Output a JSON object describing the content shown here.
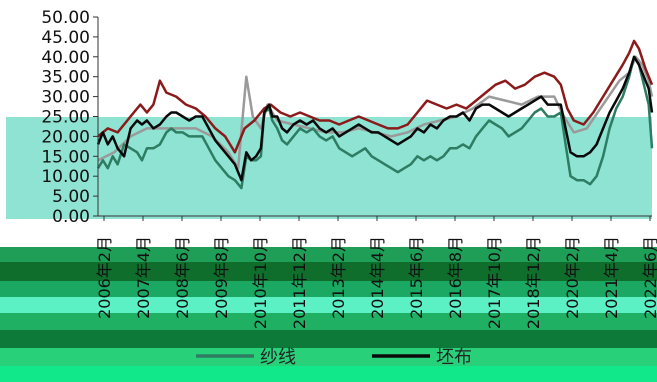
{
  "chart_data": {
    "type": "line",
    "title": "",
    "xlabel": "",
    "ylabel": "",
    "ylim": [
      0,
      50
    ],
    "yticks": [
      "0.00",
      "5.00",
      "10.00",
      "15.00",
      "20.00",
      "25.00",
      "30.00",
      "35.00",
      "40.00",
      "45.00",
      "50.00"
    ],
    "xticks": [
      "2006年2月",
      "2007年4月",
      "2008年6月",
      "2009年8月",
      "2010年10月",
      "2011年12月",
      "2013年2月",
      "2014年4月",
      "2015年6月",
      "2016年8月",
      "2017年10月",
      "2018年12月",
      "2020年2月",
      "2021年4月",
      "2022年6月"
    ],
    "grid": false,
    "legend_position": "bottom",
    "series": [
      {
        "name": "纱线",
        "color": "#2e7d62",
        "values": [
          [
            2006.0,
            12
          ],
          [
            2006.15,
            14
          ],
          [
            2006.3,
            12
          ],
          [
            2006.45,
            15
          ],
          [
            2006.6,
            13
          ],
          [
            2006.8,
            18
          ],
          [
            2007.0,
            17
          ],
          [
            2007.2,
            16
          ],
          [
            2007.35,
            14
          ],
          [
            2007.5,
            17
          ],
          [
            2007.7,
            17
          ],
          [
            2007.9,
            18
          ],
          [
            2008.1,
            21
          ],
          [
            2008.25,
            22
          ],
          [
            2008.4,
            21
          ],
          [
            2008.6,
            21
          ],
          [
            2008.8,
            20
          ],
          [
            2009.0,
            20
          ],
          [
            2009.2,
            20
          ],
          [
            2009.4,
            17
          ],
          [
            2009.6,
            14
          ],
          [
            2009.8,
            12
          ],
          [
            2010.0,
            10
          ],
          [
            2010.2,
            9
          ],
          [
            2010.4,
            7
          ],
          [
            2010.55,
            15
          ],
          [
            2010.7,
            14
          ],
          [
            2010.85,
            14
          ],
          [
            2011.0,
            15
          ],
          [
            2011.1,
            26
          ],
          [
            2011.25,
            27
          ],
          [
            2011.35,
            24
          ],
          [
            2011.5,
            22
          ],
          [
            2011.65,
            19
          ],
          [
            2011.8,
            18
          ],
          [
            2012.0,
            20
          ],
          [
            2012.2,
            22
          ],
          [
            2012.4,
            21
          ],
          [
            2012.6,
            22
          ],
          [
            2012.8,
            20
          ],
          [
            2013.0,
            19
          ],
          [
            2013.2,
            20
          ],
          [
            2013.4,
            17
          ],
          [
            2013.6,
            16
          ],
          [
            2013.8,
            15
          ],
          [
            2014.0,
            16
          ],
          [
            2014.2,
            17
          ],
          [
            2014.4,
            15
          ],
          [
            2014.6,
            14
          ],
          [
            2014.8,
            13
          ],
          [
            2015.0,
            12
          ],
          [
            2015.2,
            11
          ],
          [
            2015.4,
            12
          ],
          [
            2015.6,
            13
          ],
          [
            2015.8,
            15
          ],
          [
            2016.0,
            14
          ],
          [
            2016.2,
            15
          ],
          [
            2016.4,
            14
          ],
          [
            2016.6,
            15
          ],
          [
            2016.8,
            17
          ],
          [
            2017.0,
            17
          ],
          [
            2017.2,
            18
          ],
          [
            2017.4,
            17
          ],
          [
            2017.6,
            20
          ],
          [
            2017.8,
            22
          ],
          [
            2018.0,
            24
          ],
          [
            2018.2,
            23
          ],
          [
            2018.4,
            22
          ],
          [
            2018.6,
            20
          ],
          [
            2018.8,
            21
          ],
          [
            2019.0,
            22
          ],
          [
            2019.2,
            24
          ],
          [
            2019.4,
            26
          ],
          [
            2019.6,
            27
          ],
          [
            2019.8,
            25
          ],
          [
            2020.0,
            25
          ],
          [
            2020.2,
            26
          ],
          [
            2020.35,
            18
          ],
          [
            2020.5,
            10
          ],
          [
            2020.7,
            9
          ],
          [
            2020.9,
            9
          ],
          [
            2021.1,
            8
          ],
          [
            2021.3,
            10
          ],
          [
            2021.5,
            15
          ],
          [
            2021.7,
            22
          ],
          [
            2021.9,
            27
          ],
          [
            2022.1,
            30
          ],
          [
            2022.3,
            35
          ],
          [
            2022.45,
            40
          ],
          [
            2022.6,
            38
          ],
          [
            2022.75,
            33
          ],
          [
            2022.9,
            28
          ],
          [
            2023.0,
            17
          ]
        ]
      },
      {
        "name": "坯布",
        "color": "#0a0a0a",
        "values": [
          [
            2006.0,
            18
          ],
          [
            2006.15,
            21
          ],
          [
            2006.3,
            18
          ],
          [
            2006.45,
            20
          ],
          [
            2006.6,
            17
          ],
          [
            2006.8,
            15
          ],
          [
            2007.0,
            22
          ],
          [
            2007.2,
            24
          ],
          [
            2007.35,
            23
          ],
          [
            2007.5,
            24
          ],
          [
            2007.7,
            22
          ],
          [
            2007.9,
            23
          ],
          [
            2008.1,
            25
          ],
          [
            2008.25,
            26
          ],
          [
            2008.4,
            26
          ],
          [
            2008.6,
            25
          ],
          [
            2008.8,
            24
          ],
          [
            2009.0,
            25
          ],
          [
            2009.2,
            25
          ],
          [
            2009.4,
            22
          ],
          [
            2009.6,
            19
          ],
          [
            2009.8,
            17
          ],
          [
            2010.0,
            15
          ],
          [
            2010.2,
            13
          ],
          [
            2010.4,
            9
          ],
          [
            2010.55,
            16
          ],
          [
            2010.7,
            14
          ],
          [
            2010.85,
            15
          ],
          [
            2011.0,
            17
          ],
          [
            2011.1,
            26
          ],
          [
            2011.25,
            28
          ],
          [
            2011.35,
            25
          ],
          [
            2011.5,
            25
          ],
          [
            2011.65,
            22
          ],
          [
            2011.8,
            21
          ],
          [
            2012.0,
            23
          ],
          [
            2012.2,
            24
          ],
          [
            2012.4,
            23
          ],
          [
            2012.6,
            24
          ],
          [
            2012.8,
            22
          ],
          [
            2013.0,
            21
          ],
          [
            2013.2,
            22
          ],
          [
            2013.4,
            20
          ],
          [
            2013.6,
            21
          ],
          [
            2013.8,
            22
          ],
          [
            2014.0,
            23
          ],
          [
            2014.2,
            22
          ],
          [
            2014.4,
            21
          ],
          [
            2014.6,
            21
          ],
          [
            2014.8,
            20
          ],
          [
            2015.0,
            19
          ],
          [
            2015.2,
            18
          ],
          [
            2015.4,
            19
          ],
          [
            2015.6,
            20
          ],
          [
            2015.8,
            22
          ],
          [
            2016.0,
            21
          ],
          [
            2016.2,
            23
          ],
          [
            2016.4,
            22
          ],
          [
            2016.6,
            24
          ],
          [
            2016.8,
            25
          ],
          [
            2017.0,
            25
          ],
          [
            2017.2,
            26
          ],
          [
            2017.4,
            24
          ],
          [
            2017.6,
            27
          ],
          [
            2017.8,
            28
          ],
          [
            2018.0,
            28
          ],
          [
            2018.2,
            27
          ],
          [
            2018.4,
            26
          ],
          [
            2018.6,
            25
          ],
          [
            2018.8,
            26
          ],
          [
            2019.0,
            27
          ],
          [
            2019.2,
            28
          ],
          [
            2019.4,
            29
          ],
          [
            2019.6,
            30
          ],
          [
            2019.8,
            28
          ],
          [
            2020.0,
            28
          ],
          [
            2020.2,
            28
          ],
          [
            2020.35,
            22
          ],
          [
            2020.5,
            16
          ],
          [
            2020.7,
            15
          ],
          [
            2020.9,
            15
          ],
          [
            2021.1,
            16
          ],
          [
            2021.3,
            18
          ],
          [
            2021.5,
            22
          ],
          [
            2021.7,
            26
          ],
          [
            2021.9,
            29
          ],
          [
            2022.1,
            32
          ],
          [
            2022.3,
            36
          ],
          [
            2022.45,
            40
          ],
          [
            2022.6,
            38
          ],
          [
            2022.75,
            35
          ],
          [
            2022.9,
            32
          ],
          [
            2023.0,
            26
          ]
        ]
      },
      {
        "name": "",
        "color": "#8b1a1a",
        "values": [
          [
            2006.0,
            20
          ],
          [
            2006.3,
            22
          ],
          [
            2006.6,
            21
          ],
          [
            2006.9,
            24
          ],
          [
            2007.1,
            26
          ],
          [
            2007.3,
            28
          ],
          [
            2007.5,
            26
          ],
          [
            2007.7,
            28
          ],
          [
            2007.9,
            34
          ],
          [
            2008.1,
            31
          ],
          [
            2008.4,
            30
          ],
          [
            2008.7,
            28
          ],
          [
            2009.0,
            27
          ],
          [
            2009.3,
            25
          ],
          [
            2009.6,
            22
          ],
          [
            2009.9,
            20
          ],
          [
            2010.2,
            16
          ],
          [
            2010.5,
            22
          ],
          [
            2010.8,
            24
          ],
          [
            2011.1,
            27
          ],
          [
            2011.3,
            28
          ],
          [
            2011.6,
            26
          ],
          [
            2011.9,
            25
          ],
          [
            2012.2,
            26
          ],
          [
            2012.5,
            25
          ],
          [
            2012.8,
            24
          ],
          [
            2013.1,
            24
          ],
          [
            2013.4,
            23
          ],
          [
            2013.7,
            24
          ],
          [
            2014.0,
            25
          ],
          [
            2014.3,
            24
          ],
          [
            2014.6,
            23
          ],
          [
            2014.9,
            22
          ],
          [
            2015.2,
            22
          ],
          [
            2015.5,
            23
          ],
          [
            2015.8,
            26
          ],
          [
            2016.1,
            29
          ],
          [
            2016.4,
            28
          ],
          [
            2016.7,
            27
          ],
          [
            2017.0,
            28
          ],
          [
            2017.3,
            27
          ],
          [
            2017.6,
            29
          ],
          [
            2017.9,
            31
          ],
          [
            2018.2,
            33
          ],
          [
            2018.5,
            34
          ],
          [
            2018.8,
            32
          ],
          [
            2019.1,
            33
          ],
          [
            2019.4,
            35
          ],
          [
            2019.7,
            36
          ],
          [
            2020.0,
            35
          ],
          [
            2020.2,
            33
          ],
          [
            2020.4,
            27
          ],
          [
            2020.6,
            24
          ],
          [
            2020.9,
            23
          ],
          [
            2021.2,
            26
          ],
          [
            2021.5,
            30
          ],
          [
            2021.8,
            34
          ],
          [
            2022.1,
            38
          ],
          [
            2022.3,
            41
          ],
          [
            2022.45,
            44
          ],
          [
            2022.6,
            42
          ],
          [
            2022.8,
            37
          ],
          [
            2023.0,
            33
          ]
        ]
      },
      {
        "name": "",
        "color": "#9a9a9a",
        "values": [
          [
            2006.0,
            14
          ],
          [
            2006.5,
            16
          ],
          [
            2007.0,
            20
          ],
          [
            2007.5,
            22
          ],
          [
            2008.0,
            22
          ],
          [
            2008.5,
            22
          ],
          [
            2009.0,
            22
          ],
          [
            2009.5,
            20
          ],
          [
            2010.0,
            16
          ],
          [
            2010.3,
            12
          ],
          [
            2010.55,
            35
          ],
          [
            2010.75,
            25
          ],
          [
            2011.0,
            22
          ],
          [
            2011.2,
            28
          ],
          [
            2011.5,
            24
          ],
          [
            2012.0,
            23
          ],
          [
            2012.5,
            22
          ],
          [
            2013.0,
            21
          ],
          [
            2013.5,
            21
          ],
          [
            2014.0,
            22
          ],
          [
            2014.5,
            21
          ],
          [
            2015.0,
            20
          ],
          [
            2015.5,
            21
          ],
          [
            2016.0,
            23
          ],
          [
            2016.5,
            24
          ],
          [
            2017.0,
            25
          ],
          [
            2017.5,
            27
          ],
          [
            2018.0,
            30
          ],
          [
            2018.5,
            29
          ],
          [
            2019.0,
            28
          ],
          [
            2019.5,
            30
          ],
          [
            2020.0,
            30
          ],
          [
            2020.3,
            25
          ],
          [
            2020.6,
            21
          ],
          [
            2021.0,
            22
          ],
          [
            2021.5,
            28
          ],
          [
            2022.0,
            34
          ],
          [
            2022.3,
            36
          ],
          [
            2022.5,
            40
          ],
          [
            2022.7,
            38
          ],
          [
            2022.9,
            34
          ],
          [
            2023.0,
            30
          ]
        ]
      }
    ]
  }
}
